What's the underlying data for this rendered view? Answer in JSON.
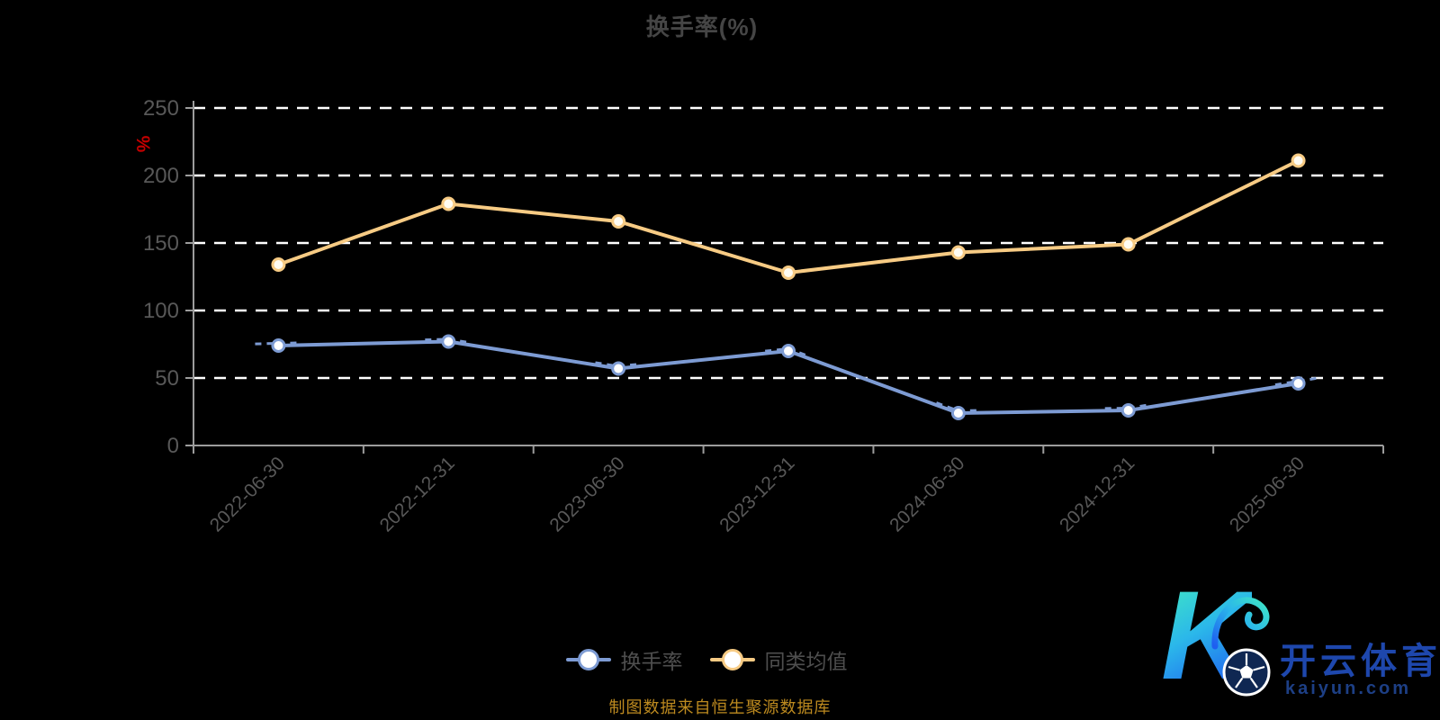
{
  "title": "换手率(%)",
  "chart_data": {
    "type": "line",
    "categories": [
      "2022-06-30",
      "2022-12-31",
      "2023-06-30",
      "2023-12-31",
      "2024-06-30",
      "2024-12-31",
      "2025-06-30"
    ],
    "series": [
      {
        "name": "换手率",
        "color": "#7d9bd3",
        "values": [
          74,
          77,
          57,
          70,
          24,
          26,
          46
        ]
      },
      {
        "name": "同类均值",
        "color": "#f7cb84",
        "values": [
          134,
          179,
          166,
          128,
          143,
          149,
          211
        ]
      }
    ],
    "title": "换手率(%)",
    "xlabel": "",
    "ylabel": "%",
    "ylim": [
      0,
      250
    ],
    "yticks": [
      0,
      50,
      100,
      150,
      200,
      250
    ],
    "grid": "horizontal-dashed-white",
    "legend_position": "bottom"
  },
  "y_axis": {
    "name": "%",
    "name_color": "#c40000",
    "tick_labels": [
      "0",
      "50",
      "100",
      "150",
      "200",
      "250"
    ]
  },
  "legend": {
    "items": [
      {
        "label": "换手率",
        "color": "#7d9bd3"
      },
      {
        "label": "同类均值",
        "color": "#f7cb84"
      }
    ]
  },
  "footer": {
    "note": "制图数据来自恒生聚源数据库"
  },
  "logo": {
    "monogram": "K",
    "brand": "开云体育",
    "domain": "kaiyun.com"
  },
  "colors": {
    "background": "#000000",
    "title_text": "#454545",
    "axis_line": "#9c9c9c",
    "axis_label": "#585858",
    "gridline": "#ffffff",
    "series_turnover": "#7d9bd3",
    "series_average": "#f7cb84",
    "footer_text": "#bd8a1f",
    "logo_blue": "#1e47ad"
  }
}
